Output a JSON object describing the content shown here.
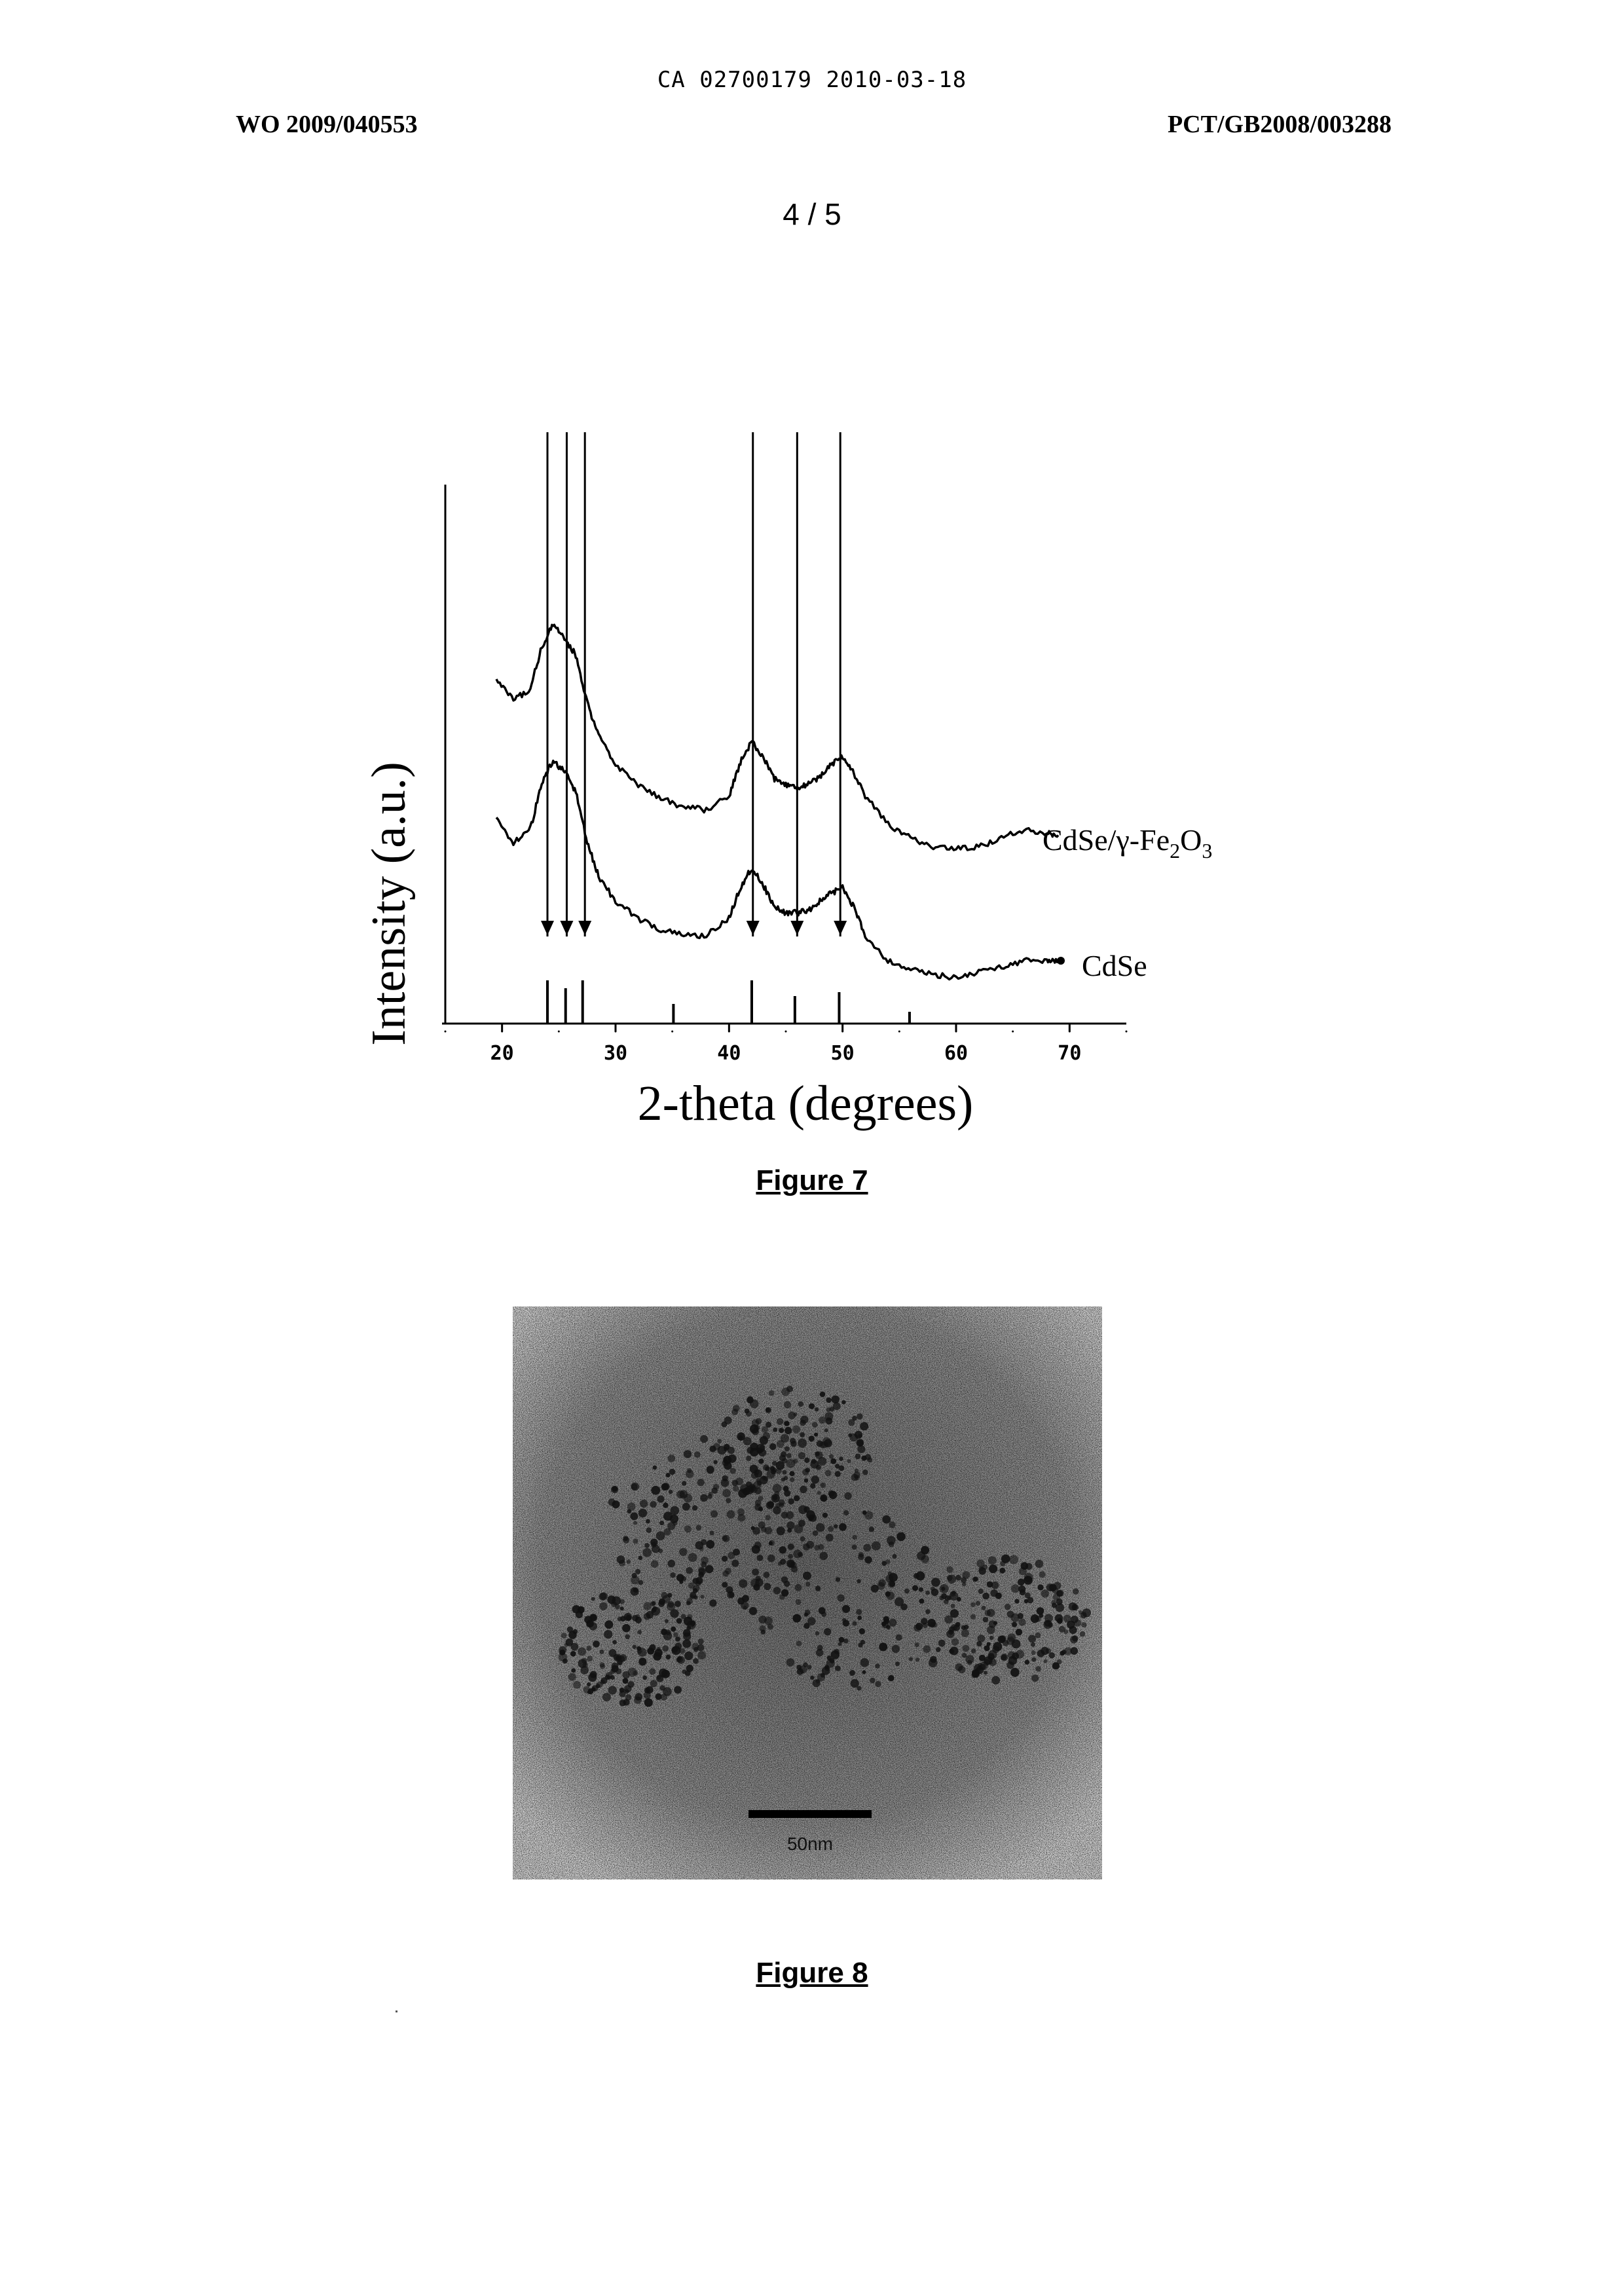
{
  "header": {
    "stamp": "CA 02700179 2010-03-18",
    "publication_left": "WO 2009/040553",
    "publication_right": "PCT/GB2008/003288",
    "page_number": "4 / 5"
  },
  "figure7": {
    "caption": "Figure 7",
    "chart_data": {
      "type": "line",
      "xlabel": "2-theta (degrees)",
      "ylabel": "Intensity (a.u.)",
      "xlim": [
        15,
        75
      ],
      "x_ticks": [
        "20",
        "30",
        "40",
        "50",
        "60",
        "70"
      ],
      "y_ticks": [],
      "reference_lines_x": [
        24.0,
        25.7,
        27.3,
        42.1,
        46.0,
        49.8
      ],
      "arrow_markers_x": [
        24.0,
        25.7,
        27.3,
        42.1,
        46.0,
        49.8
      ],
      "reference_sticks": [
        {
          "x": 24.0,
          "height": 0.22
        },
        {
          "x": 25.6,
          "height": 0.18
        },
        {
          "x": 27.1,
          "height": 0.22
        },
        {
          "x": 35.1,
          "height": 0.1
        },
        {
          "x": 42.0,
          "height": 0.22
        },
        {
          "x": 45.8,
          "height": 0.14
        },
        {
          "x": 49.7,
          "height": 0.16
        },
        {
          "x": 55.9,
          "height": 0.06
        }
      ],
      "series": [
        {
          "name": "CdSe/γ-Fe2O3",
          "x": [
            19.5,
            21,
            22.5,
            23.5,
            24.5,
            25.5,
            26.5,
            27.5,
            28.5,
            30,
            32,
            34,
            36,
            38,
            40,
            41,
            42,
            43,
            44,
            45,
            46,
            47,
            48,
            49,
            50,
            51,
            52,
            54,
            56,
            58,
            60,
            62,
            64,
            66,
            68,
            69
          ],
          "values": [
            0.84,
            0.77,
            0.81,
            0.96,
            1.04,
            0.99,
            0.93,
            0.76,
            0.64,
            0.54,
            0.47,
            0.42,
            0.39,
            0.38,
            0.43,
            0.55,
            0.62,
            0.57,
            0.49,
            0.47,
            0.46,
            0.47,
            0.5,
            0.54,
            0.57,
            0.51,
            0.43,
            0.33,
            0.28,
            0.25,
            0.24,
            0.25,
            0.28,
            0.31,
            0.3,
            0.29
          ]
        },
        {
          "name": "CdSe",
          "x": [
            19.5,
            21,
            22.5,
            23.5,
            24.5,
            25.5,
            26.5,
            27.5,
            28.5,
            30,
            32,
            34,
            36,
            38,
            40,
            41,
            42,
            43,
            44,
            45,
            46,
            47,
            48,
            49,
            50,
            51,
            52,
            54,
            56,
            58,
            60,
            62,
            64,
            66,
            68,
            69
          ],
          "values": [
            0.6,
            0.52,
            0.57,
            0.73,
            0.81,
            0.77,
            0.7,
            0.52,
            0.4,
            0.31,
            0.25,
            0.21,
            0.19,
            0.19,
            0.25,
            0.36,
            0.43,
            0.37,
            0.29,
            0.27,
            0.27,
            0.28,
            0.31,
            0.34,
            0.36,
            0.29,
            0.19,
            0.1,
            0.07,
            0.05,
            0.04,
            0.06,
            0.08,
            0.1,
            0.1,
            0.1
          ]
        }
      ],
      "series_labels": {
        "upper_main": "CdSe/γ-Fe",
        "upper_sub1": "2",
        "upper_mid": "O",
        "upper_sub2": "3",
        "lower": "CdSe"
      }
    }
  },
  "figure8": {
    "caption": "Figure 8",
    "scale_bar_label": "50nm"
  }
}
